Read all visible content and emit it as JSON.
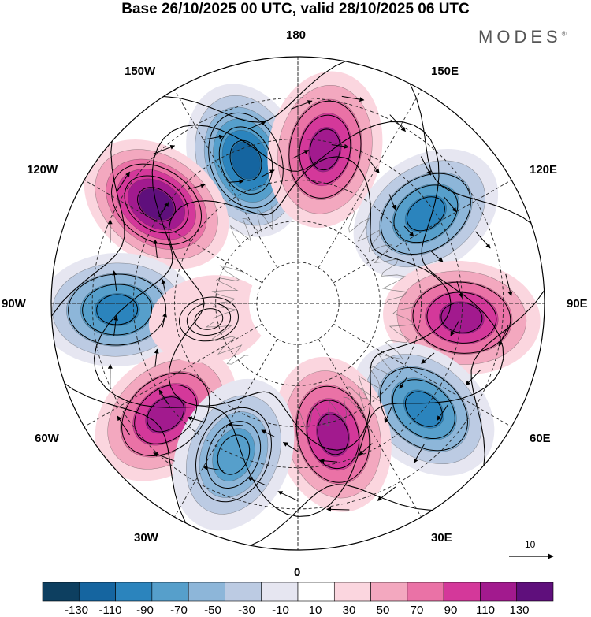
{
  "title": "Base 26/10/2025 00 UTC, valid 28/10/2025 06 UTC",
  "brand": "MODES",
  "brand_mark": "®",
  "longitude_labels": [
    "180",
    "150E",
    "120E",
    "90E",
    "60E",
    "30E",
    "0",
    "30W",
    "60W",
    "90W",
    "120W",
    "150W"
  ],
  "reference_vector": {
    "value": "10"
  },
  "colorbar": {
    "ticks": [
      "-130",
      "-110",
      "-90",
      "-70",
      "-50",
      "-30",
      "-10",
      "10",
      "30",
      "50",
      "70",
      "90",
      "110",
      "130"
    ],
    "colors": [
      "#0d3f60",
      "#1565a0",
      "#2b84bd",
      "#569fcb",
      "#8db6d9",
      "#bccbe3",
      "#e6e6f1",
      "#ffffff",
      "#fbd6df",
      "#f3a8bf",
      "#ea72a6",
      "#d4389a",
      "#a21a8e",
      "#5f0f7c"
    ]
  },
  "anomaly_centers": [
    {
      "name": "north-pacific-low",
      "lon": -160,
      "colat": 37,
      "value": -125
    },
    {
      "name": "east-siberia-high",
      "lon": 170,
      "colat": 38,
      "value": 115
    },
    {
      "name": "alaska-high",
      "lon": -125,
      "colat": 42,
      "value": 125
    },
    {
      "name": "north-asia-low",
      "lon": 125,
      "colat": 38,
      "value": -100
    },
    {
      "name": "central-asia-high",
      "lon": 85,
      "colat": 40,
      "value": 115
    },
    {
      "name": "north-america-low",
      "lon": -88,
      "colat": 44,
      "value": -115
    },
    {
      "name": "ural-low",
      "lon": 50,
      "colat": 40,
      "value": -105
    },
    {
      "name": "north-atlantic-high",
      "lon": -50,
      "colat": 42,
      "value": 110
    },
    {
      "name": "scandinavia-high",
      "lon": 15,
      "colat": 33,
      "value": 110
    },
    {
      "name": "atlantic-low",
      "lon": -23,
      "colat": 40,
      "value": -95
    },
    {
      "name": "canada-high",
      "lon": -80,
      "colat": 22,
      "value": 28
    }
  ]
}
